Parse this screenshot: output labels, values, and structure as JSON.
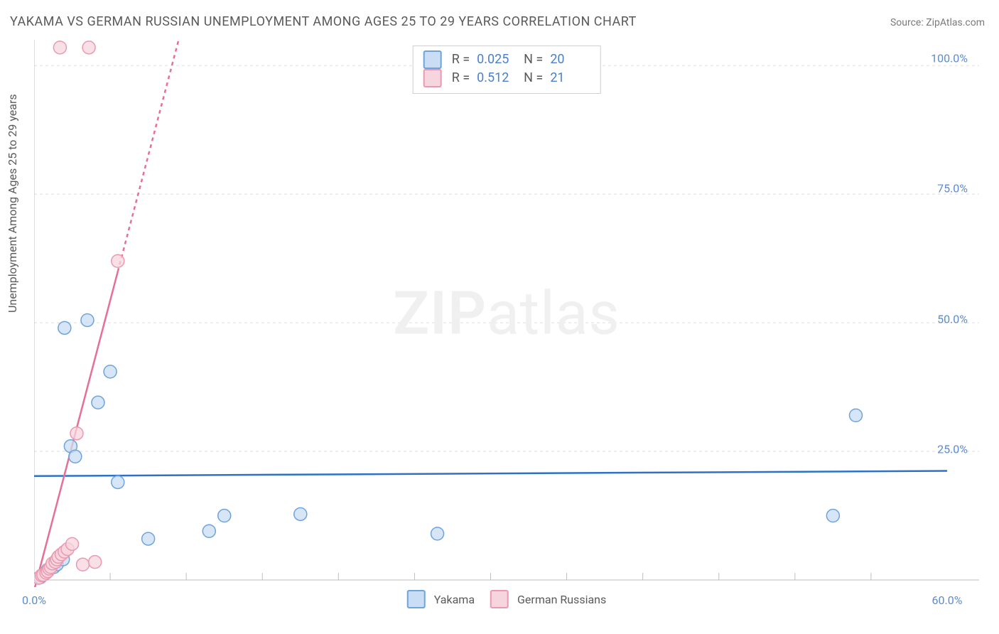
{
  "title": "YAKAMA VS GERMAN RUSSIAN UNEMPLOYMENT AMONG AGES 25 TO 29 YEARS CORRELATION CHART",
  "source": "Source: ZipAtlas.com",
  "ylabel": "Unemployment Among Ages 25 to 29 years",
  "watermark": {
    "bold": "ZIP",
    "rest": "atlas"
  },
  "chart": {
    "type": "scatter",
    "xlim": [
      0,
      60
    ],
    "ylim": [
      0,
      105
    ],
    "xticks": [
      0,
      60
    ],
    "xtick_labels": [
      "0.0%",
      "60.0%"
    ],
    "yticks": [
      25,
      50,
      75,
      100
    ],
    "ytick_labels": [
      "25.0%",
      "50.0%",
      "75.0%",
      "100.0%"
    ],
    "x_minor_step": 5,
    "grid_color": "#dddddd",
    "axis_color": "#bdbdbd",
    "background_color": "#ffffff",
    "marker_radius": 9,
    "marker_stroke": 1.5,
    "series": [
      {
        "name": "Yakama",
        "color_fill": "#c9ddf4",
        "color_stroke": "#6ea3db",
        "trend": {
          "x1": 0,
          "y1": 20.2,
          "x2": 60,
          "y2": 21.2,
          "dashed_below_x": null,
          "dashed_above_x": null,
          "color": "#2f72c4",
          "width": 2.5
        },
        "points": [
          {
            "x": 0.4,
            "y": 0.5
          },
          {
            "x": 0.7,
            "y": 1.2
          },
          {
            "x": 0.9,
            "y": 2.0
          },
          {
            "x": 1.3,
            "y": 2.5
          },
          {
            "x": 1.5,
            "y": 3.0
          },
          {
            "x": 1.9,
            "y": 4.0
          },
          {
            "x": 2.4,
            "y": 26.0
          },
          {
            "x": 2.7,
            "y": 24.0
          },
          {
            "x": 2.0,
            "y": 49.0
          },
          {
            "x": 3.5,
            "y": 50.5
          },
          {
            "x": 4.2,
            "y": 34.5
          },
          {
            "x": 5.0,
            "y": 40.5
          },
          {
            "x": 5.5,
            "y": 19.0
          },
          {
            "x": 7.5,
            "y": 8.0
          },
          {
            "x": 11.5,
            "y": 9.5
          },
          {
            "x": 12.5,
            "y": 12.5
          },
          {
            "x": 17.5,
            "y": 12.8
          },
          {
            "x": 26.5,
            "y": 9.0
          },
          {
            "x": 52.5,
            "y": 12.5
          },
          {
            "x": 54.0,
            "y": 32.0
          }
        ]
      },
      {
        "name": "German Russians",
        "color_fill": "#f7d5de",
        "color_stroke": "#e99ab0",
        "trend": {
          "x1": 0,
          "y1": -2,
          "x2": 9.5,
          "y2": 105,
          "dashed_above_x": 5.5,
          "dashed_below_x": null,
          "color": "#e76f93",
          "width": 2.5
        },
        "points": [
          {
            "x": 0.3,
            "y": 0.4
          },
          {
            "x": 0.5,
            "y": 0.9
          },
          {
            "x": 0.6,
            "y": 1.0
          },
          {
            "x": 0.8,
            "y": 1.4
          },
          {
            "x": 0.9,
            "y": 1.7
          },
          {
            "x": 1.0,
            "y": 2.2
          },
          {
            "x": 1.1,
            "y": 2.5
          },
          {
            "x": 1.2,
            "y": 3.2
          },
          {
            "x": 1.4,
            "y": 3.5
          },
          {
            "x": 1.5,
            "y": 4.0
          },
          {
            "x": 1.6,
            "y": 4.5
          },
          {
            "x": 1.8,
            "y": 5.0
          },
          {
            "x": 2.0,
            "y": 5.5
          },
          {
            "x": 2.2,
            "y": 6.0
          },
          {
            "x": 2.5,
            "y": 7.0
          },
          {
            "x": 2.8,
            "y": 28.5
          },
          {
            "x": 3.2,
            "y": 3.0
          },
          {
            "x": 4.0,
            "y": 3.5
          },
          {
            "x": 5.5,
            "y": 62.0
          },
          {
            "x": 1.7,
            "y": 103.5
          },
          {
            "x": 3.6,
            "y": 103.5
          }
        ]
      }
    ]
  },
  "legend_top": [
    {
      "swatch_fill": "#c9ddf4",
      "swatch_stroke": "#6ea3db",
      "r_label": "R =",
      "r": "0.025",
      "n_label": "N =",
      "n": "20"
    },
    {
      "swatch_fill": "#f7d5de",
      "swatch_stroke": "#e99ab0",
      "r_label": "R =",
      "r": "0.512",
      "n_label": "N =",
      "n": "21"
    }
  ],
  "legend_bottom": [
    {
      "swatch_fill": "#c9ddf4",
      "swatch_stroke": "#6ea3db",
      "label": "Yakama"
    },
    {
      "swatch_fill": "#f7d5de",
      "swatch_stroke": "#e99ab0",
      "label": "German Russians"
    }
  ]
}
